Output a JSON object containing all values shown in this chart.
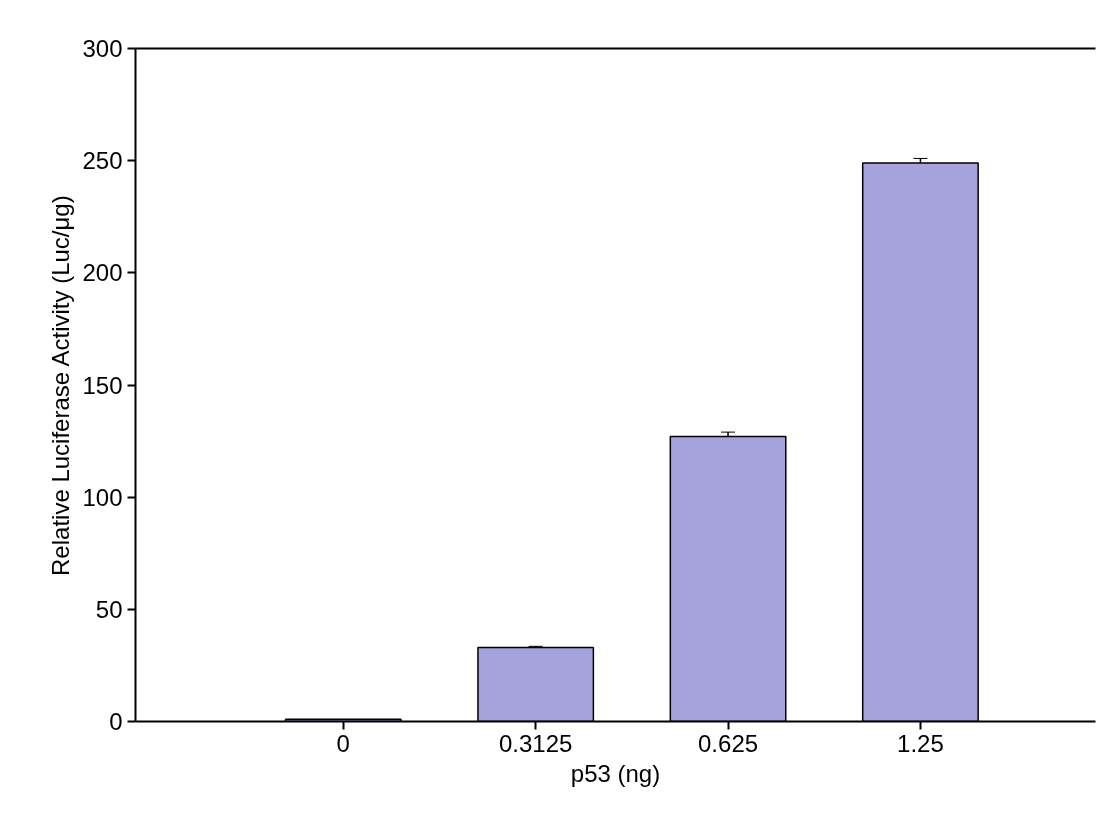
{
  "chart_data": {
    "type": "bar",
    "xlabel": "p53 (ng)",
    "ylabel": "Relative Luciferase Activity (Luc/μg)",
    "categories": [
      "0",
      "0.3125",
      "0.625",
      "1.25"
    ],
    "values": [
      1,
      33,
      127,
      249
    ],
    "errors": [
      null,
      0.5,
      2,
      2
    ],
    "color": "#a6a3dc",
    "ylim": [
      0,
      300
    ],
    "yticks": [
      0,
      50,
      100,
      150,
      200,
      250,
      300
    ],
    "grid": false
  }
}
